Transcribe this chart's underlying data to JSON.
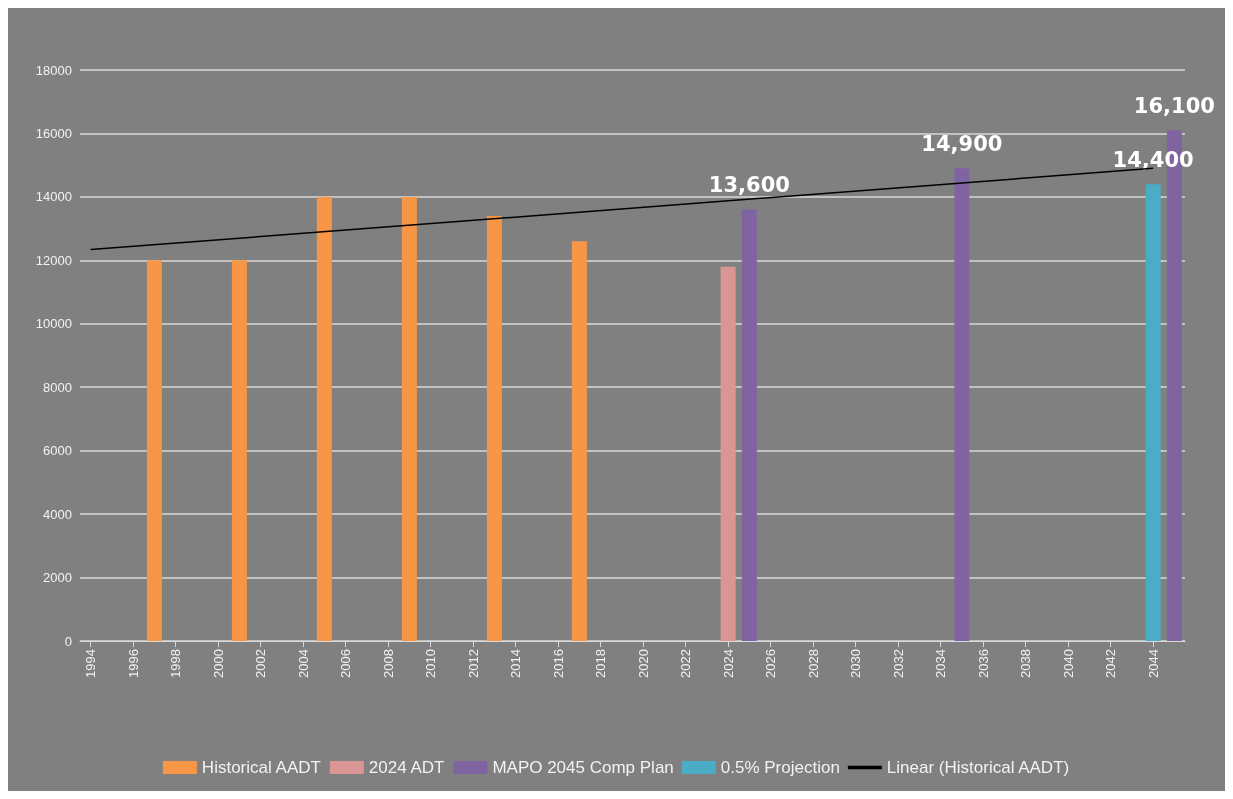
{
  "chart_data": {
    "type": "bar",
    "xlim": [
      1993.5,
      2045.5
    ],
    "xticks": [
      1994,
      1996,
      1998,
      2000,
      2002,
      2004,
      2006,
      2008,
      2010,
      2012,
      2014,
      2016,
      2018,
      2020,
      2022,
      2024,
      2026,
      2028,
      2030,
      2032,
      2034,
      2036,
      2038,
      2040,
      2042,
      2044
    ],
    "ylim": [
      0,
      18000
    ],
    "yticks": [
      0,
      2000,
      4000,
      6000,
      8000,
      10000,
      12000,
      14000,
      16000,
      18000
    ],
    "grid": "y",
    "legend": "bottom",
    "series": [
      {
        "name": "Historical AADT",
        "color": "#f79646",
        "x": [
          1997,
          2001,
          2005,
          2009,
          2013,
          2017
        ],
        "values": [
          12000,
          12000,
          14000,
          14000,
          13400,
          12600
        ]
      },
      {
        "name": "2024 ADT",
        "color": "#d99694",
        "x": [
          2024
        ],
        "values": [
          11800
        ]
      },
      {
        "name": "MAPO 2045 Comp Plan",
        "color": "#8064a2",
        "x": [
          2025,
          2035,
          2045
        ],
        "values": [
          13600,
          14900,
          16100
        ],
        "value_labels": [
          "13,600",
          "14,900",
          "16,100"
        ]
      },
      {
        "name": "0.5% Projection",
        "color": "#4bacc6",
        "x": [
          2044
        ],
        "values": [
          14400
        ],
        "value_labels": [
          "14,400"
        ]
      },
      {
        "name": "Linear (Historical AADT)",
        "type": "line",
        "color": "#000000",
        "x": [
          1994,
          2044
        ],
        "values": [
          12340,
          14900
        ]
      }
    ]
  }
}
